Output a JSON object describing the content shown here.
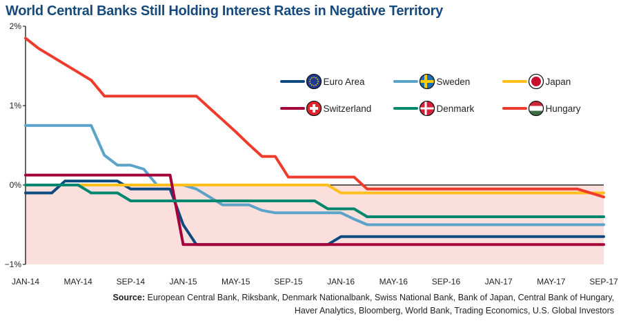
{
  "title": "World Central Banks Still Holding Interest Rates in Negative Territory",
  "source": {
    "label": "Source:",
    "line1": "European Central Bank, Riksbank, Denmark Nationalbank, Swiss National Bank, Bank of Japan, Central Bank of Hungary,",
    "line2": "Haver Analytics, Bloomberg, World Bank, Trading Economics, U.S. Global Investors"
  },
  "chart_data": {
    "type": "line",
    "title": "World Central Banks Still Holding Interest Rates in Negative Territory",
    "x_start": "2014-01",
    "x_end": "2017-09",
    "x_frequency": "monthly",
    "x_tick_labels": [
      "JAN-14",
      "MAY-14",
      "SEP-14",
      "JAN-15",
      "MAY-15",
      "SEP-15",
      "JAN-16",
      "MAY-16",
      "SEP-16",
      "JAN-17",
      "MAY-17",
      "SEP-17"
    ],
    "y_tick_labels": [
      "2%",
      "1%",
      "0%",
      "−1%"
    ],
    "y_ticks": [
      2,
      1,
      0,
      -1
    ],
    "ylim": [
      -1,
      2
    ],
    "grid": false,
    "negative_region_shaded": true,
    "shade_color": "#fbdfdd",
    "legend_placement": "top-right",
    "series": [
      {
        "name": "Euro Area",
        "color": "#0d4a7f",
        "flag": "eu-flag",
        "values": [
          -0.1,
          -0.1,
          -0.1,
          0.05,
          0.05,
          0.05,
          0.05,
          0.05,
          -0.05,
          -0.05,
          -0.05,
          -0.05,
          -0.5,
          -0.75,
          -0.75,
          -0.75,
          -0.75,
          -0.75,
          -0.75,
          -0.75,
          -0.75,
          -0.75,
          -0.75,
          -0.75,
          -0.65,
          -0.65,
          -0.65,
          -0.65,
          -0.65,
          -0.65,
          -0.65,
          -0.65,
          -0.65,
          -0.65,
          -0.65,
          -0.65,
          -0.65,
          -0.65,
          -0.65,
          -0.65,
          -0.65,
          -0.65,
          -0.65,
          -0.65,
          -0.65
        ]
      },
      {
        "name": "Sweden",
        "color": "#5ba3c9",
        "flag": "sweden-flag",
        "values": [
          0.75,
          0.75,
          0.75,
          0.75,
          0.75,
          0.75,
          0.375,
          0.25,
          0.25,
          0.2,
          0.0,
          0.0,
          0.0,
          -0.05,
          -0.15,
          -0.25,
          -0.25,
          -0.25,
          -0.32,
          -0.35,
          -0.35,
          -0.35,
          -0.35,
          -0.35,
          -0.35,
          -0.43,
          -0.5,
          -0.5,
          -0.5,
          -0.5,
          -0.5,
          -0.5,
          -0.5,
          -0.5,
          -0.5,
          -0.5,
          -0.5,
          -0.5,
          -0.5,
          -0.5,
          -0.5,
          -0.5,
          -0.5,
          -0.5,
          -0.5
        ]
      },
      {
        "name": "Japan",
        "color": "#ffc01e",
        "flag": "japan-flag",
        "values": [
          0,
          0,
          0,
          0,
          0,
          0,
          0,
          0,
          0,
          0,
          0,
          0,
          0,
          0,
          0,
          0,
          0,
          0,
          0,
          0,
          0,
          0,
          0,
          0,
          -0.1,
          -0.1,
          -0.1,
          -0.1,
          -0.1,
          -0.1,
          -0.1,
          -0.1,
          -0.1,
          -0.1,
          -0.1,
          -0.1,
          -0.1,
          -0.1,
          -0.1,
          -0.1,
          -0.1,
          -0.1,
          -0.1,
          -0.1,
          -0.1
        ]
      },
      {
        "name": "Switzerland",
        "color": "#a4003a",
        "flag": "switzerland-flag",
        "values": [
          0.125,
          0.125,
          0.125,
          0.125,
          0.125,
          0.125,
          0.125,
          0.125,
          0.125,
          0.125,
          0.125,
          0.125,
          -0.75,
          -0.75,
          -0.75,
          -0.75,
          -0.75,
          -0.75,
          -0.75,
          -0.75,
          -0.75,
          -0.75,
          -0.75,
          -0.75,
          -0.75,
          -0.75,
          -0.75,
          -0.75,
          -0.75,
          -0.75,
          -0.75,
          -0.75,
          -0.75,
          -0.75,
          -0.75,
          -0.75,
          -0.75,
          -0.75,
          -0.75,
          -0.75,
          -0.75,
          -0.75,
          -0.75,
          -0.75,
          -0.75
        ]
      },
      {
        "name": "Denmark",
        "color": "#00876f",
        "flag": "denmark-flag",
        "values": [
          0,
          0,
          0,
          0,
          0,
          -0.1,
          -0.1,
          -0.1,
          -0.2,
          -0.2,
          -0.2,
          -0.2,
          -0.2,
          -0.2,
          -0.2,
          -0.2,
          -0.2,
          -0.2,
          -0.2,
          -0.2,
          -0.2,
          -0.2,
          -0.2,
          -0.3,
          -0.3,
          -0.3,
          -0.4,
          -0.4,
          -0.4,
          -0.4,
          -0.4,
          -0.4,
          -0.4,
          -0.4,
          -0.4,
          -0.4,
          -0.4,
          -0.4,
          -0.4,
          -0.4,
          -0.4,
          -0.4,
          -0.4,
          -0.4,
          -0.4
        ]
      },
      {
        "name": "Hungary",
        "color": "#ef3b2c",
        "flag": "hungary-flag",
        "values": [
          1.85,
          1.72,
          1.62,
          1.52,
          1.42,
          1.32,
          1.12,
          1.12,
          1.12,
          1.12,
          1.12,
          1.12,
          1.12,
          1.12,
          0.97,
          0.82,
          0.67,
          0.51,
          0.36,
          0.36,
          0.1,
          0.1,
          0.1,
          0.1,
          0.1,
          0.1,
          -0.05,
          -0.05,
          -0.05,
          -0.05,
          -0.05,
          -0.05,
          -0.05,
          -0.05,
          -0.05,
          -0.05,
          -0.05,
          -0.05,
          -0.05,
          -0.05,
          -0.05,
          -0.05,
          -0.05,
          -0.1,
          -0.15
        ]
      }
    ]
  }
}
